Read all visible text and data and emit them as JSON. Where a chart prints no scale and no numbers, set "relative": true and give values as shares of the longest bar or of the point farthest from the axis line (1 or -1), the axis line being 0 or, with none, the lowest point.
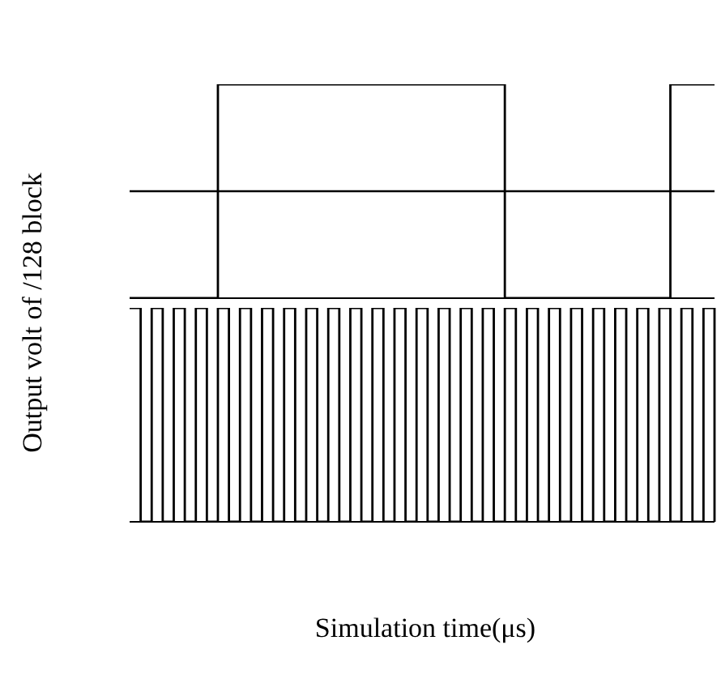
{
  "chart_data": [
    {
      "type": "step",
      "relative": true,
      "tick_labels": false,
      "ylabel": "Output volt of /128 block",
      "categories": [
        null,
        null,
        null,
        null,
        null,
        null,
        null,
        null,
        null,
        null,
        null,
        null,
        null,
        null,
        null,
        null,
        null,
        null,
        null,
        null,
        null,
        null,
        null,
        null,
        null,
        null,
        null,
        null,
        null,
        null,
        null,
        null,
        null,
        null,
        null,
        null,
        null,
        null,
        null,
        null,
        null,
        null,
        null,
        null,
        null,
        null,
        null,
        null,
        null,
        null,
        null,
        null,
        null,
        null
      ],
      "series": [
        {
          "color": "#000000",
          "values": [
            0,
            0,
            0,
            0,
            0,
            0,
            0,
            0,
            1,
            1,
            1,
            1,
            1,
            1,
            1,
            1,
            1,
            1,
            1,
            1,
            1,
            1,
            1,
            1,
            1,
            1,
            1,
            1,
            1,
            1,
            1,
            1,
            1,
            1,
            0,
            0,
            0,
            0,
            0,
            0,
            0,
            0,
            0,
            0,
            0,
            0,
            0,
            0,
            0,
            1,
            1,
            1,
            1,
            1
          ]
        }
      ],
      "ref_lines": [
        {
          "axis": "y",
          "value": 0.5,
          "color": "#000000"
        }
      ]
    },
    {
      "type": "step",
      "relative": true,
      "tick_labels": false,
      "xlabel": "Simulation time(μs)",
      "categories": [
        null,
        null,
        null,
        null,
        null,
        null,
        null,
        null,
        null,
        null,
        null,
        null,
        null,
        null,
        null,
        null,
        null,
        null,
        null,
        null,
        null,
        null,
        null,
        null,
        null,
        null,
        null,
        null,
        null,
        null,
        null,
        null,
        null,
        null,
        null,
        null,
        null,
        null,
        null,
        null,
        null,
        null,
        null,
        null,
        null,
        null,
        null,
        null,
        null,
        null,
        null,
        null,
        null,
        null
      ],
      "series": [
        {
          "color": "#000000",
          "values": [
            1,
            0,
            1,
            0,
            1,
            0,
            1,
            0,
            1,
            0,
            1,
            0,
            1,
            0,
            1,
            0,
            1,
            0,
            1,
            0,
            1,
            0,
            1,
            0,
            1,
            0,
            1,
            0,
            1,
            0,
            1,
            0,
            1,
            0,
            1,
            0,
            1,
            0,
            1,
            0,
            1,
            0,
            1,
            0,
            1,
            0,
            1,
            0,
            1,
            0,
            1,
            0,
            1,
            0
          ]
        }
      ]
    }
  ]
}
